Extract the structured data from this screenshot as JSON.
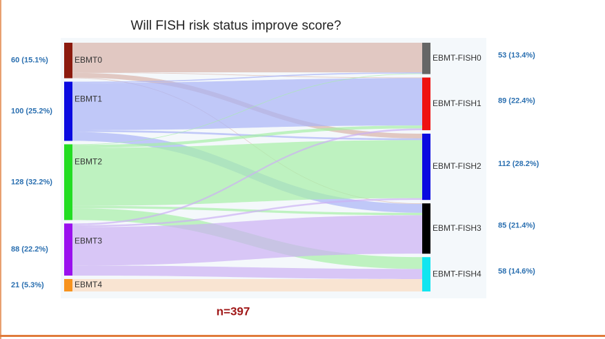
{
  "chart_data": {
    "type": "sankey",
    "title": "Will FISH risk status improve score?",
    "note": "n=397",
    "left_nodes": [
      {
        "label": "EBMT0",
        "value": 60,
        "value_label": "60 (15.1%)",
        "color": "#8b1a0e",
        "link_color": "#d9b4aa"
      },
      {
        "label": "EBMT1",
        "value": 100,
        "value_label": "100 (25.2%)",
        "color": "#0a0ae0",
        "link_color": "#a9b3f6"
      },
      {
        "label": "EBMT2",
        "value": 128,
        "value_label": "128 (32.2%)",
        "color": "#22dd22",
        "link_color": "#a6efa6"
      },
      {
        "label": "EBMT3",
        "value": 88,
        "value_label": "88 (22.2%)",
        "color": "#9a10ee",
        "link_color": "#ccb0f4"
      },
      {
        "label": "EBMT4",
        "value": 21,
        "value_label": "21 (5.3%)",
        "color": "#f7931e",
        "link_color": "#fbdcc0"
      }
    ],
    "right_nodes": [
      {
        "label": "EBMT-FISH0",
        "value": 53,
        "value_label": "53 (13.4%)",
        "color": "#666666"
      },
      {
        "label": "EBMT-FISH1",
        "value": 89,
        "value_label": "89 (22.4%)",
        "color": "#ee1111"
      },
      {
        "label": "EBMT-FISH2",
        "value": 112,
        "value_label": "112 (28.2%)",
        "color": "#0a0ae0"
      },
      {
        "label": "EBMT-FISH3",
        "value": 85,
        "value_label": "85 (21.4%)",
        "color": "#000000"
      },
      {
        "label": "EBMT-FISH4",
        "value": 58,
        "value_label": "58 (14.6%)",
        "color": "#11e5f0"
      }
    ],
    "links": [
      {
        "source": 0,
        "target": 0,
        "value": 50
      },
      {
        "source": 0,
        "target": 1,
        "value": 1
      },
      {
        "source": 0,
        "target": 2,
        "value": 8
      },
      {
        "source": 0,
        "target": 3,
        "value": 1
      },
      {
        "source": 1,
        "target": 0,
        "value": 2
      },
      {
        "source": 1,
        "target": 1,
        "value": 80
      },
      {
        "source": 1,
        "target": 2,
        "value": 3
      },
      {
        "source": 1,
        "target": 3,
        "value": 15
      },
      {
        "source": 2,
        "target": 0,
        "value": 1
      },
      {
        "source": 2,
        "target": 1,
        "value": 5
      },
      {
        "source": 2,
        "target": 2,
        "value": 98
      },
      {
        "source": 2,
        "target": 3,
        "value": 4
      },
      {
        "source": 2,
        "target": 4,
        "value": 20
      },
      {
        "source": 3,
        "target": 1,
        "value": 3
      },
      {
        "source": 3,
        "target": 2,
        "value": 3
      },
      {
        "source": 3,
        "target": 3,
        "value": 65
      },
      {
        "source": 3,
        "target": 4,
        "value": 17
      },
      {
        "source": 4,
        "target": 4,
        "value": 21
      }
    ]
  }
}
